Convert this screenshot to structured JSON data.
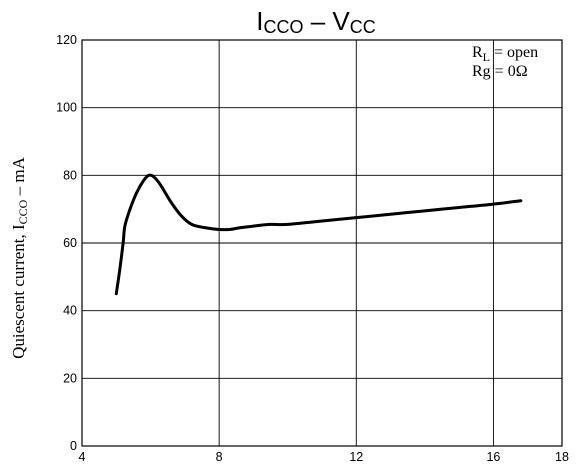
{
  "chart_data": {
    "type": "line",
    "title": {
      "main": "I",
      "main_sub": "CCO",
      "separator": " – ",
      "second": "V",
      "second_sub": "CC"
    },
    "xlabel": "",
    "ylabel": {
      "prefix": "Quiescent current, I",
      "sub": "CCO",
      "suffix": "  –  mA"
    },
    "xlim": [
      4,
      18
    ],
    "ylim": [
      0,
      120
    ],
    "x_ticks": [
      4,
      8,
      12,
      16,
      18
    ],
    "y_ticks": [
      0,
      20,
      40,
      60,
      80,
      100,
      120
    ],
    "grid": true,
    "annotations": [
      {
        "main": "R",
        "sub": "L",
        "rest": " = open"
      },
      {
        "main": "Rg",
        "sub": "",
        "rest": " = 0Ω"
      }
    ],
    "series": [
      {
        "color": "#000000",
        "x": [
          5.0,
          5.1,
          5.2,
          5.25,
          5.4,
          5.6,
          5.8,
          5.95,
          6.1,
          6.3,
          6.6,
          6.9,
          7.2,
          7.6,
          8.0,
          8.3,
          8.6,
          9.0,
          9.5,
          10.0,
          11.0,
          12.0,
          13.0,
          14.0,
          15.0,
          16.0,
          16.8
        ],
        "y": [
          45,
          52,
          60,
          65,
          70,
          75,
          78.5,
          80,
          79.5,
          77,
          72,
          68,
          65.5,
          64.5,
          64,
          64,
          64.5,
          65,
          65.5,
          65.5,
          66.5,
          67.5,
          68.5,
          69.5,
          70.5,
          71.5,
          72.5
        ]
      }
    ]
  }
}
